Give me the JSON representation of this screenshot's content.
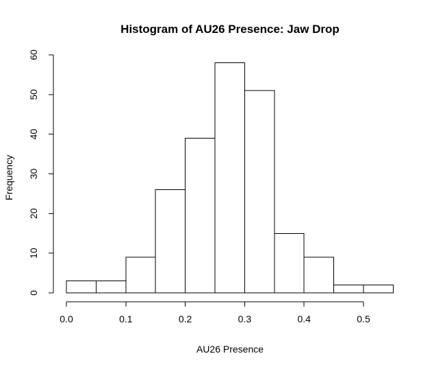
{
  "chart_data": {
    "type": "bar",
    "title": "Histogram of AU26 Presence: Jaw Drop",
    "xlabel": "AU26 Presence",
    "ylabel": "Frequency",
    "bins": [
      {
        "start": 0.0,
        "end": 0.05,
        "count": 3
      },
      {
        "start": 0.05,
        "end": 0.1,
        "count": 3
      },
      {
        "start": 0.1,
        "end": 0.15,
        "count": 9
      },
      {
        "start": 0.15,
        "end": 0.2,
        "count": 26
      },
      {
        "start": 0.2,
        "end": 0.25,
        "count": 39
      },
      {
        "start": 0.25,
        "end": 0.3,
        "count": 58
      },
      {
        "start": 0.3,
        "end": 0.35,
        "count": 51
      },
      {
        "start": 0.35,
        "end": 0.4,
        "count": 15
      },
      {
        "start": 0.4,
        "end": 0.45,
        "count": 9
      },
      {
        "start": 0.45,
        "end": 0.5,
        "count": 2
      },
      {
        "start": 0.5,
        "end": 0.55,
        "count": 2
      }
    ],
    "xlim": [
      0.0,
      0.55
    ],
    "ylim": [
      0,
      60
    ],
    "x_ticks": [
      0.0,
      0.1,
      0.2,
      0.3,
      0.4,
      0.5
    ],
    "x_tick_labels": [
      "0.0",
      "0.1",
      "0.2",
      "0.3",
      "0.4",
      "0.5"
    ],
    "y_ticks": [
      0,
      10,
      20,
      30,
      40,
      50,
      60
    ],
    "y_tick_labels": [
      "0",
      "10",
      "20",
      "30",
      "40",
      "50",
      "60"
    ],
    "grid": false,
    "bar_fill": "#ffffff",
    "bar_stroke": "#000000"
  }
}
